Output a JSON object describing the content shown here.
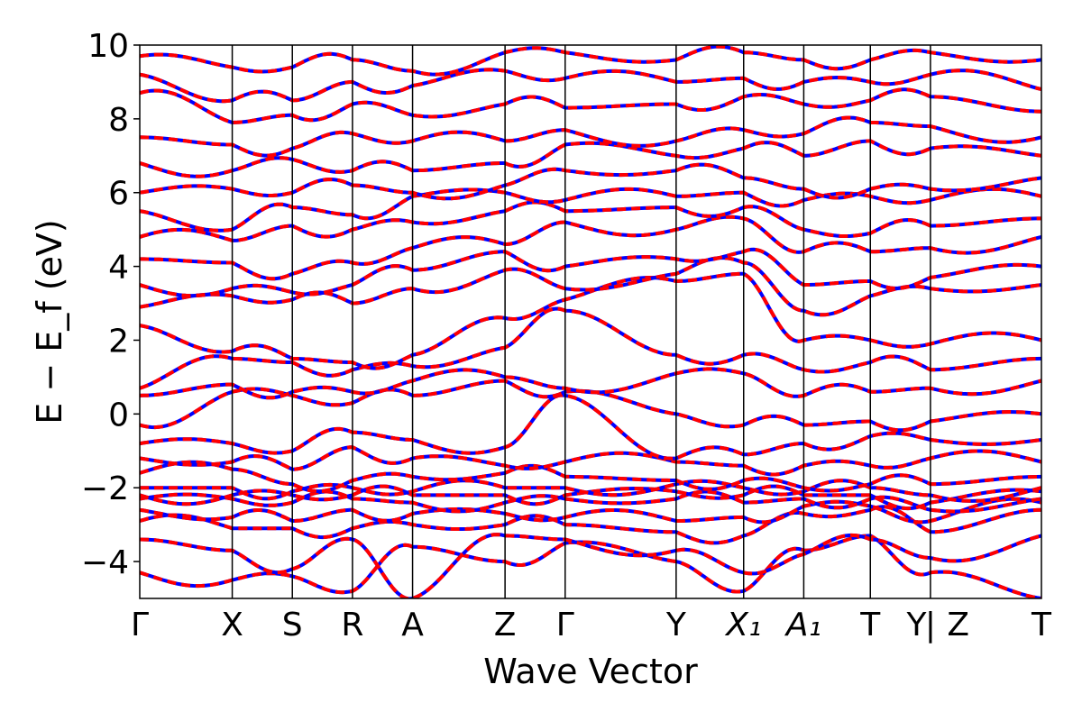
{
  "chart_data": {
    "type": "line",
    "title": "",
    "xlabel": "Wave Vector",
    "ylabel": "E − E_f (eV)",
    "ylim": [
      -5,
      10
    ],
    "yticks": [
      -4,
      -2,
      0,
      2,
      4,
      6,
      8,
      10
    ],
    "ytick_labels": [
      "−4",
      "−2",
      "0",
      "2",
      "4",
      "6",
      "8",
      "10"
    ],
    "grid": false,
    "legend": "none",
    "xrange": [
      0,
      9.75
    ],
    "high_symmetry_points": [
      {
        "label": "Γ",
        "x": 0.0
      },
      {
        "label": "X",
        "x": 1.0
      },
      {
        "label": "S",
        "x": 1.65
      },
      {
        "label": "R",
        "x": 2.3
      },
      {
        "label": "A",
        "x": 2.95
      },
      {
        "label": "Z",
        "x": 3.95
      },
      {
        "label": "Γ",
        "x": 4.6
      },
      {
        "label": "Y",
        "x": 5.8
      },
      {
        "label": "X₁",
        "x": 6.53
      },
      {
        "label": "A₁",
        "x": 7.18
      },
      {
        "label": "T",
        "x": 7.9
      },
      {
        "label": "Y",
        "x": 8.4
      },
      {
        "label": "|",
        "x": 8.55
      },
      {
        "label": "Z",
        "x": 8.85
      },
      {
        "label": "T",
        "x": 9.75
      }
    ],
    "segment_boundaries": [
      0.0,
      1.0,
      1.65,
      2.3,
      2.95,
      3.95,
      4.6,
      5.8,
      6.53,
      7.18,
      7.9,
      8.55,
      9.75
    ],
    "band_energies_at_boundaries": [
      [
        -4.3,
        -4.5,
        -4.4,
        -4.8,
        -3.6,
        -4.0,
        -3.5,
        -4.0,
        -4.8,
        -3.7,
        -3.3,
        -4.3,
        -5.0
      ],
      [
        -3.4,
        -3.7,
        -4.2,
        -3.4,
        -5.0,
        -3.3,
        -3.4,
        -3.7,
        -4.3,
        -3.8,
        -3.4,
        -3.9,
        -3.3
      ],
      [
        -2.9,
        -3.1,
        -3.1,
        -3.1,
        -3.0,
        -3.0,
        -3.0,
        -3.2,
        -3.3,
        -2.7,
        -2.6,
        -3.2,
        -2.6
      ],
      [
        -2.6,
        -2.8,
        -2.9,
        -2.6,
        -2.7,
        -2.7,
        -2.8,
        -2.9,
        -2.8,
        -2.5,
        -2.5,
        -2.9,
        -2.4
      ],
      [
        -2.3,
        -2.3,
        -2.4,
        -2.3,
        -2.4,
        -2.4,
        -2.3,
        -2.3,
        -2.4,
        -2.3,
        -2.3,
        -2.6,
        -2.3
      ],
      [
        -2.2,
        -2.2,
        -2.2,
        -2.2,
        -2.2,
        -2.2,
        -2.2,
        -2.1,
        -2.2,
        -2.2,
        -2.2,
        -2.4,
        -2.1
      ],
      [
        -2.0,
        -2.0,
        -2.1,
        -2.0,
        -2.1,
        -2.0,
        -2.0,
        -1.9,
        -2.0,
        -2.1,
        -2.0,
        -2.2,
        -2.0
      ],
      [
        -1.6,
        -1.5,
        -1.9,
        -1.8,
        -1.7,
        -1.6,
        -1.7,
        -1.8,
        -1.8,
        -2.0,
        -1.9,
        -1.9,
        -1.7
      ],
      [
        -1.2,
        -1.3,
        -1.5,
        -0.9,
        -1.2,
        -1.4,
        -1.3,
        -1.3,
        -1.4,
        -1.4,
        -1.4,
        -1.2,
        -1.3
      ],
      [
        -0.8,
        -0.8,
        -1.0,
        -0.5,
        -0.7,
        -0.9,
        0.5,
        -1.2,
        -1.1,
        -0.8,
        -0.6,
        -0.7,
        -0.7
      ],
      [
        -0.3,
        0.6,
        0.5,
        0.3,
        0.5,
        0.9,
        0.6,
        0.0,
        -0.3,
        -0.3,
        -0.2,
        -0.2,
        0.0
      ],
      [
        0.5,
        0.8,
        0.6,
        0.6,
        0.9,
        1.0,
        0.7,
        1.1,
        1.1,
        0.5,
        0.6,
        0.7,
        0.9
      ],
      [
        0.7,
        1.5,
        1.4,
        1.2,
        1.3,
        1.8,
        2.8,
        1.6,
        1.6,
        1.2,
        1.4,
        1.2,
        1.5
      ],
      [
        2.4,
        1.7,
        1.5,
        1.4,
        1.6,
        2.6,
        3.1,
        3.6,
        3.8,
        2.0,
        2.0,
        1.9,
        2.0
      ],
      [
        2.9,
        3.2,
        3.1,
        3.0,
        3.4,
        3.9,
        3.4,
        3.8,
        4.1,
        2.8,
        3.2,
        3.4,
        3.5
      ],
      [
        3.5,
        3.4,
        3.3,
        3.5,
        3.9,
        4.4,
        4.0,
        4.2,
        4.4,
        3.5,
        3.6,
        3.7,
        4.0
      ],
      [
        4.2,
        4.1,
        3.8,
        4.1,
        4.5,
        4.6,
        5.2,
        5.0,
        5.3,
        4.4,
        4.4,
        4.5,
        4.8
      ],
      [
        4.8,
        4.7,
        5.1,
        5.0,
        5.2,
        5.5,
        5.5,
        5.6,
        5.6,
        5.0,
        4.9,
        5.1,
        5.3
      ],
      [
        5.5,
        5.0,
        5.6,
        5.4,
        5.9,
        6.0,
        5.8,
        5.9,
        6.0,
        5.8,
        5.9,
        5.8,
        5.9
      ],
      [
        6.0,
        6.1,
        6.0,
        6.2,
        6.0,
        6.2,
        6.6,
        6.6,
        6.4,
        6.1,
        6.1,
        6.1,
        6.4
      ],
      [
        6.8,
        6.6,
        6.9,
        6.6,
        6.6,
        6.8,
        7.3,
        7.0,
        7.2,
        7.0,
        7.4,
        7.2,
        7.0
      ],
      [
        7.5,
        7.3,
        7.2,
        7.6,
        7.4,
        7.4,
        7.7,
        7.4,
        7.7,
        7.6,
        7.9,
        7.8,
        7.5
      ],
      [
        8.7,
        7.9,
        8.1,
        8.4,
        8.1,
        8.4,
        8.3,
        8.4,
        8.6,
        8.4,
        8.5,
        8.6,
        8.2
      ],
      [
        9.2,
        8.5,
        8.5,
        9.0,
        8.9,
        9.3,
        9.1,
        9.0,
        9.1,
        9.0,
        9.0,
        9.2,
        8.8
      ],
      [
        9.7,
        9.4,
        9.4,
        9.6,
        9.3,
        9.8,
        9.8,
        9.6,
        9.8,
        9.6,
        9.6,
        9.8,
        9.6
      ]
    ],
    "series": [
      {
        "color": "#ff0000",
        "style": "solid"
      },
      {
        "color": "#0000ff",
        "style": "dashed"
      }
    ]
  }
}
